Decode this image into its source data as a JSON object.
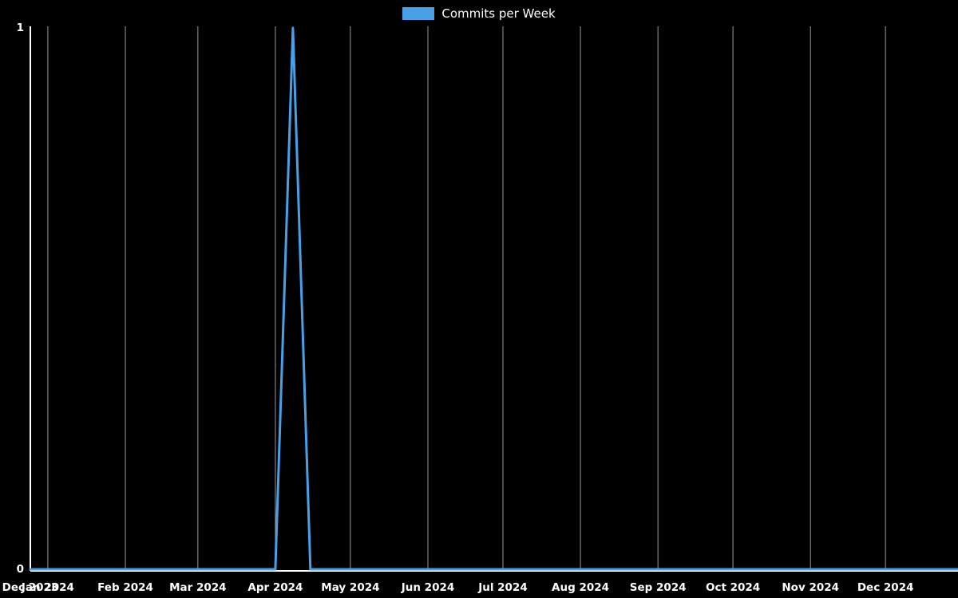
{
  "chart_data": {
    "type": "line",
    "title": "",
    "legend_position": "top-center",
    "grid": {
      "vertical": true,
      "horizontal": false
    },
    "colors": {
      "background": "#000000",
      "line": "#47a0e8",
      "axis": "#ffffff",
      "grid": "#9a9a9a",
      "text": "#ffffff"
    },
    "x_domain": [
      "2023-12-25",
      "2024-12-30"
    ],
    "ylim": [
      0,
      1
    ],
    "y_ticks": [
      0,
      1
    ],
    "x_ticks": [
      {
        "label": "Dec 2023",
        "date": "2023-12-25"
      },
      {
        "label": "Jan 2024",
        "date": "2024-01-01"
      },
      {
        "label": "Feb 2024",
        "date": "2024-02-01"
      },
      {
        "label": "Mar 2024",
        "date": "2024-03-01"
      },
      {
        "label": "Apr 2024",
        "date": "2024-04-01"
      },
      {
        "label": "May 2024",
        "date": "2024-05-01"
      },
      {
        "label": "Jun 2024",
        "date": "2024-06-01"
      },
      {
        "label": "Jul 2024",
        "date": "2024-07-01"
      },
      {
        "label": "Aug 2024",
        "date": "2024-08-01"
      },
      {
        "label": "Sep 2024",
        "date": "2024-09-01"
      },
      {
        "label": "Oct 2024",
        "date": "2024-10-01"
      },
      {
        "label": "Nov 2024",
        "date": "2024-11-01"
      },
      {
        "label": "Dec 2024",
        "date": "2024-12-01"
      }
    ],
    "x": [
      "2023-12-25",
      "2024-01-01",
      "2024-01-08",
      "2024-01-15",
      "2024-01-22",
      "2024-01-29",
      "2024-02-05",
      "2024-02-12",
      "2024-02-19",
      "2024-02-26",
      "2024-03-04",
      "2024-03-11",
      "2024-03-18",
      "2024-03-25",
      "2024-04-01",
      "2024-04-08",
      "2024-04-15",
      "2024-04-22",
      "2024-04-29",
      "2024-05-06",
      "2024-05-13",
      "2024-05-20",
      "2024-05-27",
      "2024-06-03",
      "2024-06-10",
      "2024-06-17",
      "2024-06-24",
      "2024-07-01",
      "2024-07-08",
      "2024-07-15",
      "2024-07-22",
      "2024-07-29",
      "2024-08-05",
      "2024-08-12",
      "2024-08-19",
      "2024-08-26",
      "2024-09-02",
      "2024-09-09",
      "2024-09-16",
      "2024-09-23",
      "2024-09-30",
      "2024-10-07",
      "2024-10-14",
      "2024-10-21",
      "2024-10-28",
      "2024-11-04",
      "2024-11-11",
      "2024-11-18",
      "2024-11-25",
      "2024-12-02",
      "2024-12-09",
      "2024-12-16",
      "2024-12-23",
      "2024-12-30"
    ],
    "series": [
      {
        "name": "Commits per Week",
        "values": [
          0,
          0,
          0,
          0,
          0,
          0,
          0,
          0,
          0,
          0,
          0,
          0,
          0,
          0,
          0,
          1,
          0,
          0,
          0,
          0,
          0,
          0,
          0,
          0,
          0,
          0,
          0,
          0,
          0,
          0,
          0,
          0,
          0,
          0,
          0,
          0,
          0,
          0,
          0,
          0,
          0,
          0,
          0,
          0,
          0,
          0,
          0,
          0,
          0,
          0,
          0,
          0,
          0,
          0
        ]
      }
    ]
  }
}
